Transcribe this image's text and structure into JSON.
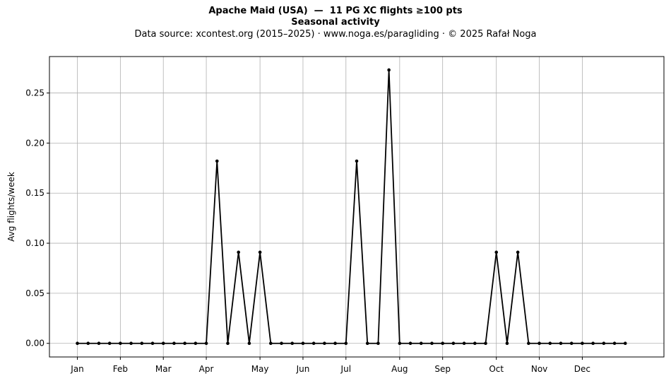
{
  "header": {
    "title_line1": "Apache Maid (USA)  —  11 PG XC flights ≥100 pts",
    "title_line2": "Seasonal activity",
    "subtitle": "Data source: xcontest.org (2015–2025)  ·  www.noga.es/paragliding  ·  © 2025 Rafał Noga"
  },
  "chart_data": {
    "type": "line",
    "title": "Apache Maid (USA)  —  11 PG XC flights ≥100 pts",
    "subtitle": "Seasonal activity",
    "xlabel": "",
    "ylabel": "Avg flights/week",
    "x_unit": "week of year",
    "x": [
      1,
      2,
      3,
      4,
      5,
      6,
      7,
      8,
      9,
      10,
      11,
      12,
      13,
      14,
      15,
      16,
      17,
      18,
      19,
      20,
      21,
      22,
      23,
      24,
      25,
      26,
      27,
      28,
      29,
      30,
      31,
      32,
      33,
      34,
      35,
      36,
      37,
      38,
      39,
      40,
      41,
      42,
      43,
      44,
      45,
      46,
      47,
      48,
      49,
      50,
      51,
      52
    ],
    "series": [
      {
        "name": "",
        "color": "#000000",
        "marker": "dot",
        "values": [
          0,
          0,
          0,
          0,
          0,
          0,
          0,
          0,
          0,
          0,
          0,
          0,
          0,
          0.182,
          0,
          0.091,
          0,
          0.091,
          0,
          0,
          0,
          0,
          0,
          0,
          0,
          0,
          0.182,
          0,
          0,
          0.273,
          0,
          0,
          0,
          0,
          0,
          0,
          0,
          0,
          0,
          0.091,
          0,
          0.091,
          0,
          0,
          0,
          0,
          0,
          0,
          0,
          0,
          0,
          0
        ]
      }
    ],
    "xticks": [
      {
        "label": "Jan",
        "x": 1
      },
      {
        "label": "Feb",
        "x": 5
      },
      {
        "label": "Mar",
        "x": 9
      },
      {
        "label": "Apr",
        "x": 13
      },
      {
        "label": "May",
        "x": 18
      },
      {
        "label": "Jun",
        "x": 22
      },
      {
        "label": "Jul",
        "x": 26
      },
      {
        "label": "Aug",
        "x": 31
      },
      {
        "label": "Sep",
        "x": 35
      },
      {
        "label": "Oct",
        "x": 40
      },
      {
        "label": "Nov",
        "x": 44
      },
      {
        "label": "Dec",
        "x": 48
      }
    ],
    "yticks": [
      {
        "label": "0.00",
        "value": 0
      },
      {
        "label": "0.05",
        "value": 0.05
      },
      {
        "label": "0.10",
        "value": 0.1
      },
      {
        "label": "0.15",
        "value": 0.15
      },
      {
        "label": "0.20",
        "value": 0.2
      },
      {
        "label": "0.25",
        "value": 0.25
      }
    ],
    "xlim": [
      -1.6,
      55.6
    ],
    "ylim": [
      -0.0136,
      0.2864
    ],
    "grid": true,
    "grid_color": "#b0b0b0",
    "legend": "none"
  }
}
